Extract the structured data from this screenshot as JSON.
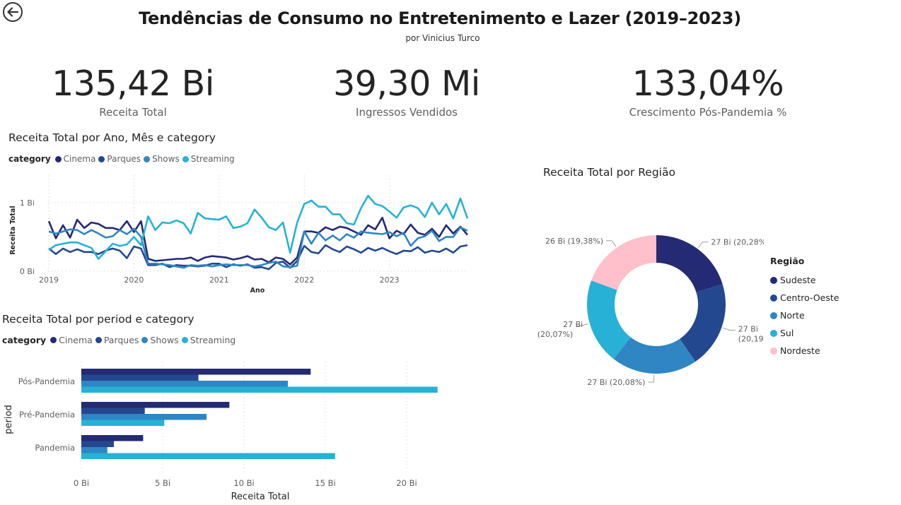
{
  "header": {
    "title": "Tendências de Consumo no Entretenimento e Lazer (2019–2023)",
    "subtitle": "por Vinicius Turco"
  },
  "icons": {
    "back": "back-arrow-icon"
  },
  "kpis": [
    {
      "value": "135,42 Bi",
      "label": "Receita Total"
    },
    {
      "value": "39,30 Mi",
      "label": "Ingressos Vendidos"
    },
    {
      "value": "133,04%",
      "label": "Crescimento Pós-Pandemia %"
    }
  ],
  "colors": {
    "Cinema": "#242a73",
    "Parques": "#23488f",
    "Shows": "#2f86c3",
    "Streaming": "#27b1d6",
    "Sudeste": "#242a73",
    "Centro-Oeste": "#23488f",
    "Norte": "#2f86c3",
    "Sul": "#27b1d6",
    "Nordeste": "#ffc0cb"
  },
  "chart_data": [
    {
      "type": "line",
      "title": "Receita Total por Ano, Mês e category",
      "xlabel": "Ano",
      "ylabel": "Receita Total",
      "legend_title": "category",
      "x_ticks": [
        "2019",
        "2020",
        "2021",
        "2022",
        "2023"
      ],
      "y_ticks": [
        "0 Bi",
        "1 Bi"
      ],
      "ylim": [
        0,
        1.4
      ],
      "grid": true,
      "series": [
        {
          "name": "Cinema",
          "values": [
            0.73,
            0.48,
            0.67,
            0.49,
            0.75,
            0.63,
            0.71,
            0.69,
            0.63,
            0.63,
            0.6,
            0.73,
            0.57,
            0.73,
            0.18,
            0.15,
            0.16,
            0.17,
            0.18,
            0.18,
            0.2,
            0.15,
            0.2,
            0.22,
            0.21,
            0.2,
            0.17,
            0.19,
            0.22,
            0.17,
            0.18,
            0.13,
            0.2,
            0.18,
            0.1,
            0.2,
            0.58,
            0.58,
            0.56,
            0.64,
            0.6,
            0.65,
            0.63,
            0.58,
            0.53,
            0.67,
            0.61,
            0.78,
            0.48,
            0.59,
            0.54,
            0.68,
            0.56,
            0.53,
            0.62,
            0.5,
            0.67,
            0.55,
            0.65,
            0.53
          ]
        },
        {
          "name": "Parques",
          "values": [
            0.33,
            0.25,
            0.33,
            0.28,
            0.32,
            0.28,
            0.28,
            0.25,
            0.3,
            0.33,
            0.3,
            0.19,
            0.36,
            0.33,
            0.09,
            0.09,
            0.11,
            0.06,
            0.09,
            0.08,
            0.08,
            0.07,
            0.08,
            0.11,
            0.11,
            0.06,
            0.1,
            0.08,
            0.1,
            0.05,
            0.06,
            0.03,
            0.12,
            0.14,
            0.05,
            0.15,
            0.37,
            0.28,
            0.26,
            0.38,
            0.32,
            0.28,
            0.36,
            0.32,
            0.27,
            0.34,
            0.3,
            0.34,
            0.29,
            0.25,
            0.3,
            0.29,
            0.35,
            0.27,
            0.3,
            0.28,
            0.33,
            0.27,
            0.36,
            0.38
          ]
        },
        {
          "name": "Shows",
          "values": [
            0.58,
            0.55,
            0.58,
            0.61,
            0.6,
            0.54,
            0.6,
            0.55,
            0.49,
            0.51,
            0.6,
            0.54,
            0.62,
            0.5,
            0.11,
            0.11,
            0.1,
            0.09,
            0.07,
            0.05,
            0.09,
            0.08,
            0.09,
            0.07,
            0.09,
            0.1,
            0.09,
            0.09,
            0.09,
            0.07,
            0.09,
            0.12,
            0.14,
            0.07,
            0.06,
            0.08,
            0.58,
            0.4,
            0.56,
            0.45,
            0.52,
            0.45,
            0.54,
            0.49,
            0.58,
            0.56,
            0.55,
            0.54,
            0.57,
            0.51,
            0.56,
            0.37,
            0.48,
            0.51,
            0.59,
            0.44,
            0.5,
            0.5,
            0.64,
            0.59
          ]
        },
        {
          "name": "Streaming",
          "values": [
            0.31,
            0.38,
            0.4,
            0.42,
            0.42,
            0.38,
            0.34,
            0.18,
            0.29,
            0.4,
            0.37,
            0.39,
            0.5,
            0.38,
            0.8,
            0.6,
            0.71,
            0.7,
            0.74,
            0.7,
            0.55,
            0.85,
            0.77,
            0.76,
            0.75,
            0.8,
            0.63,
            0.65,
            0.7,
            0.9,
            0.78,
            0.64,
            0.6,
            0.71,
            0.27,
            0.71,
            0.98,
            1.03,
            0.94,
            0.94,
            0.83,
            0.83,
            0.7,
            0.68,
            0.92,
            1.1,
            0.98,
            0.95,
            0.87,
            0.78,
            0.93,
            0.96,
            0.92,
            0.79,
            1.0,
            0.83,
            0.98,
            0.77,
            1.06,
            0.77
          ]
        }
      ]
    },
    {
      "type": "bar",
      "orientation": "horizontal",
      "title": "Receita Total por period e category",
      "xlabel": "Receita Total",
      "ylabel": "period",
      "legend_title": "category",
      "categories": [
        "Pós-Pandemia",
        "Pré-Pandemia",
        "Pandemia"
      ],
      "x_ticks": [
        "0 Bi",
        "5 Bi",
        "10 Bi",
        "15 Bi",
        "20 Bi"
      ],
      "xlim": [
        0,
        23
      ],
      "grid": true,
      "series": [
        {
          "name": "Cinema",
          "values": [
            14.1,
            9.1,
            3.8
          ]
        },
        {
          "name": "Parques",
          "values": [
            7.2,
            3.9,
            2.0
          ]
        },
        {
          "name": "Shows",
          "values": [
            12.7,
            7.7,
            1.6
          ]
        },
        {
          "name": "Streaming",
          "values": [
            21.9,
            5.1,
            15.6
          ]
        }
      ]
    },
    {
      "type": "pie",
      "donut": true,
      "title": "Receita Total por Região",
      "legend_title": "Região",
      "slices": [
        {
          "name": "Sudeste",
          "value": 20.28,
          "label": "27 Bi (20,28%)"
        },
        {
          "name": "Centro-Oeste",
          "value": 20.19,
          "label": "27 Bi (20,19%)"
        },
        {
          "name": "Norte",
          "value": 20.08,
          "label": "27 Bi (20,08%)"
        },
        {
          "name": "Sul",
          "value": 20.07,
          "label": "27 Bi (20,07%)"
        },
        {
          "name": "Nordeste",
          "value": 19.38,
          "label": "26 Bi (19,38%)"
        }
      ]
    }
  ]
}
